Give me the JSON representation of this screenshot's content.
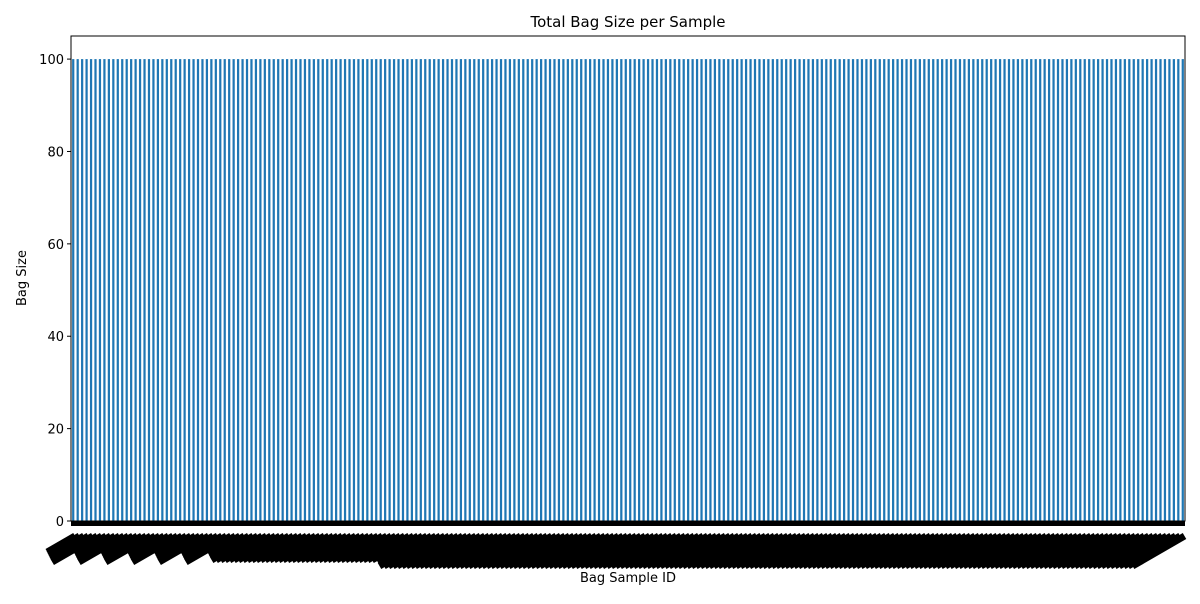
{
  "chart_data": {
    "type": "bar",
    "title": "Total Bag Size per Sample",
    "xlabel": "Bag Sample ID",
    "ylabel": "Bag Size",
    "ylim": [
      0,
      105
    ],
    "yticks": [
      0,
      20,
      40,
      60,
      80,
      100
    ],
    "categories_count": 250,
    "values_constant": 100,
    "grid": false,
    "legend": "none",
    "bar_color": "#1f77b4"
  }
}
